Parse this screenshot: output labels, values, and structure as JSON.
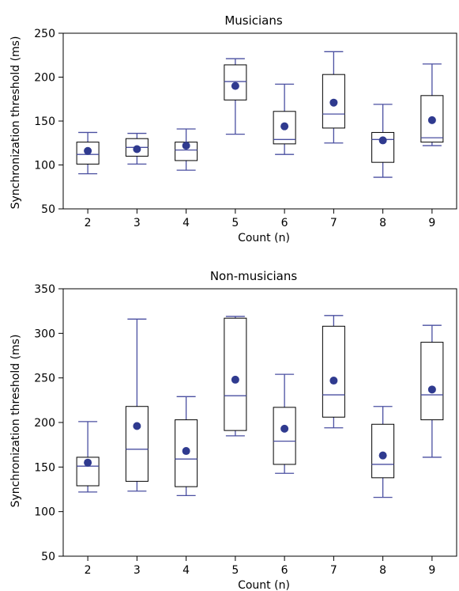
{
  "chart_data": [
    {
      "type": "box",
      "title": "Musicians",
      "xlabel": "Count (n)",
      "ylabel": "Synchronization threshold (ms)",
      "categories": [
        "2",
        "3",
        "4",
        "5",
        "6",
        "7",
        "8",
        "9"
      ],
      "ylim": [
        50,
        250
      ],
      "yticks": [
        "50",
        "100",
        "150",
        "200",
        "250"
      ],
      "series": [
        {
          "category": "2",
          "whisker_low": 90,
          "q1": 101,
          "median": 112,
          "q3": 126,
          "whisker_high": 137,
          "mean": 116
        },
        {
          "category": "3",
          "whisker_low": 101,
          "q1": 110,
          "median": 120,
          "q3": 130,
          "whisker_high": 136,
          "mean": 118
        },
        {
          "category": "4",
          "whisker_low": 94,
          "q1": 105,
          "median": 117,
          "q3": 126,
          "whisker_high": 141,
          "mean": 122
        },
        {
          "category": "5",
          "whisker_low": 135,
          "q1": 174,
          "median": 195,
          "q3": 214,
          "whisker_high": 221,
          "mean": 190
        },
        {
          "category": "6",
          "whisker_low": 112,
          "q1": 124,
          "median": 129,
          "q3": 161,
          "whisker_high": 192,
          "mean": 144
        },
        {
          "category": "7",
          "whisker_low": 125,
          "q1": 142,
          "median": 158,
          "q3": 203,
          "whisker_high": 229,
          "mean": 171
        },
        {
          "category": "8",
          "whisker_low": 86,
          "q1": 103,
          "median": 129,
          "q3": 137,
          "whisker_high": 169,
          "mean": 128
        },
        {
          "category": "9",
          "whisker_low": 122,
          "q1": 126,
          "median": 131,
          "q3": 179,
          "whisker_high": 215,
          "mean": 151
        }
      ]
    },
    {
      "type": "box",
      "title": "Non-musicians",
      "xlabel": "Count (n)",
      "ylabel": "Synchronization threshold (ms)",
      "categories": [
        "2",
        "3",
        "4",
        "5",
        "6",
        "7",
        "8",
        "9"
      ],
      "ylim": [
        50,
        350
      ],
      "yticks": [
        "50",
        "100",
        "150",
        "200",
        "250",
        "300",
        "350"
      ],
      "series": [
        {
          "category": "2",
          "whisker_low": 122,
          "q1": 129,
          "median": 151,
          "q3": 161,
          "whisker_high": 201,
          "mean": 155
        },
        {
          "category": "3",
          "whisker_low": 123,
          "q1": 134,
          "median": 170,
          "q3": 218,
          "whisker_high": 316,
          "mean": 196
        },
        {
          "category": "4",
          "whisker_low": 118,
          "q1": 128,
          "median": 159,
          "q3": 203,
          "whisker_high": 229,
          "mean": 168
        },
        {
          "category": "5",
          "whisker_low": 185,
          "q1": 191,
          "median": 230,
          "q3": 317,
          "whisker_high": 319,
          "mean": 248
        },
        {
          "category": "6",
          "whisker_low": 143,
          "q1": 153,
          "median": 179,
          "q3": 217,
          "whisker_high": 254,
          "mean": 193
        },
        {
          "category": "7",
          "whisker_low": 194,
          "q1": 206,
          "median": 231,
          "q3": 308,
          "whisker_high": 320,
          "mean": 247
        },
        {
          "category": "8",
          "whisker_low": 116,
          "q1": 138,
          "median": 153,
          "q3": 198,
          "whisker_high": 218,
          "mean": 163
        },
        {
          "category": "9",
          "whisker_low": 161,
          "q1": 203,
          "median": 231,
          "q3": 290,
          "whisker_high": 309,
          "mean": 237
        }
      ]
    }
  ],
  "colors": {
    "whisker": "#4a4fa0",
    "mean_dot": "#2f3a8f",
    "box_stroke": "#000000"
  }
}
